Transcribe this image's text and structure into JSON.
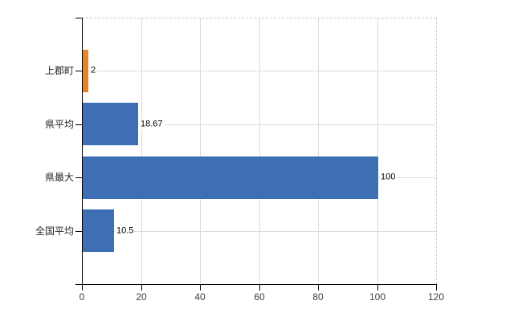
{
  "chart_data": {
    "type": "bar",
    "orientation": "horizontal",
    "title": "",
    "xlabel": "",
    "ylabel": "",
    "categories": [
      "上郡町",
      "県平均",
      "県最大",
      "全国平均"
    ],
    "values": [
      2,
      18.67,
      100,
      10.5
    ],
    "value_labels": [
      "2",
      "18.67",
      "100",
      "10.5"
    ],
    "bar_colors": [
      "#e98325",
      "#3e6fb4",
      "#3e6fb4",
      "#3e6fb4"
    ],
    "x_ticks": [
      0,
      20,
      40,
      60,
      80,
      100,
      120
    ],
    "x_tick_labels": [
      "0",
      "20",
      "40",
      "60",
      "80",
      "100",
      "120"
    ],
    "xlim": [
      0,
      120
    ],
    "grid": true,
    "legend_position": "none"
  },
  "colors": {
    "grid_vertical": "#d9d9d9",
    "grid_horizontal": "#dcdcdc",
    "plot_border_dashed": "#cfcdcd",
    "axis": "#000000",
    "tick_label": "#3f3f3f",
    "category_label": "#262626",
    "value_label": "#000000",
    "background": "#ffffff"
  }
}
